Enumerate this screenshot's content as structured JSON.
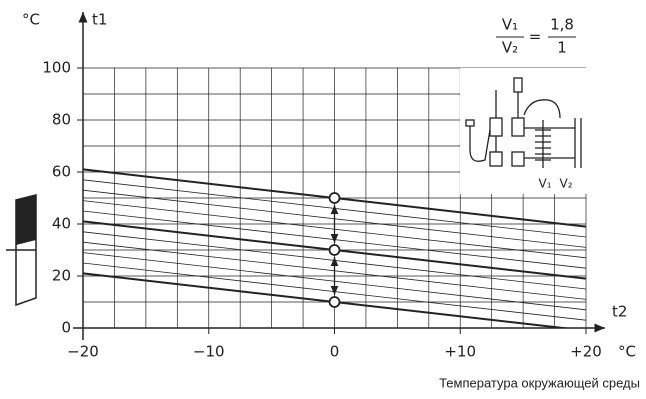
{
  "chart_data": {
    "type": "line",
    "y_label": "°C",
    "y_name": "t1",
    "x_name": "t2",
    "x_unit": "°C",
    "x_title": "Температура окружающей среды",
    "ratio": {
      "top": "V₁",
      "bottom": "V₂",
      "equals": "=",
      "value_top": "1,8",
      "value_bottom": "1"
    },
    "inset_labels": [
      "V₁",
      "V₂"
    ],
    "x": [
      -20,
      20
    ],
    "xlim": [
      -20,
      20
    ],
    "xticks": [
      {
        "value": -20,
        "label": "−20"
      },
      {
        "value": -10,
        "label": "−10"
      },
      0,
      {
        "value": 10,
        "label": "+10"
      },
      {
        "value": 20,
        "label": "+20"
      }
    ],
    "ylim": [
      0,
      100
    ],
    "yticks": [
      0,
      20,
      40,
      60,
      80,
      100
    ],
    "xgrid": [
      -20,
      -17.5,
      -15,
      -12.5,
      -10,
      -7.5,
      -5,
      -2.5,
      0,
      2.5,
      5,
      7.5,
      10,
      12.5,
      15,
      17.5,
      20
    ],
    "ygrid": [
      0,
      10,
      20,
      30,
      40,
      50,
      60,
      70,
      80,
      90,
      100
    ],
    "series": [
      {
        "color": "#222",
        "width": 2,
        "values": [
          61,
          39
        ]
      },
      {
        "color": "#222",
        "width": 0.8,
        "values": [
          57,
          35
        ]
      },
      {
        "color": "#222",
        "width": 0.8,
        "values": [
          53,
          31
        ]
      },
      {
        "color": "#222",
        "width": 0.8,
        "values": [
          49,
          27
        ]
      },
      {
        "color": "#222",
        "width": 0.8,
        "values": [
          45,
          23
        ]
      },
      {
        "color": "#222",
        "width": 2,
        "values": [
          41,
          19
        ]
      },
      {
        "color": "#222",
        "width": 0.8,
        "values": [
          37,
          15
        ]
      },
      {
        "color": "#222",
        "width": 0.8,
        "values": [
          33,
          11
        ]
      },
      {
        "color": "#222",
        "width": 0.8,
        "values": [
          29,
          7
        ]
      },
      {
        "color": "#222",
        "width": 0.8,
        "values": [
          25,
          3
        ]
      },
      {
        "color": "#222",
        "width": 2,
        "values": [
          21,
          -1
        ]
      }
    ],
    "markers": {
      "x": [
        0,
        0,
        0
      ],
      "values": [
        50,
        30,
        10
      ]
    }
  }
}
